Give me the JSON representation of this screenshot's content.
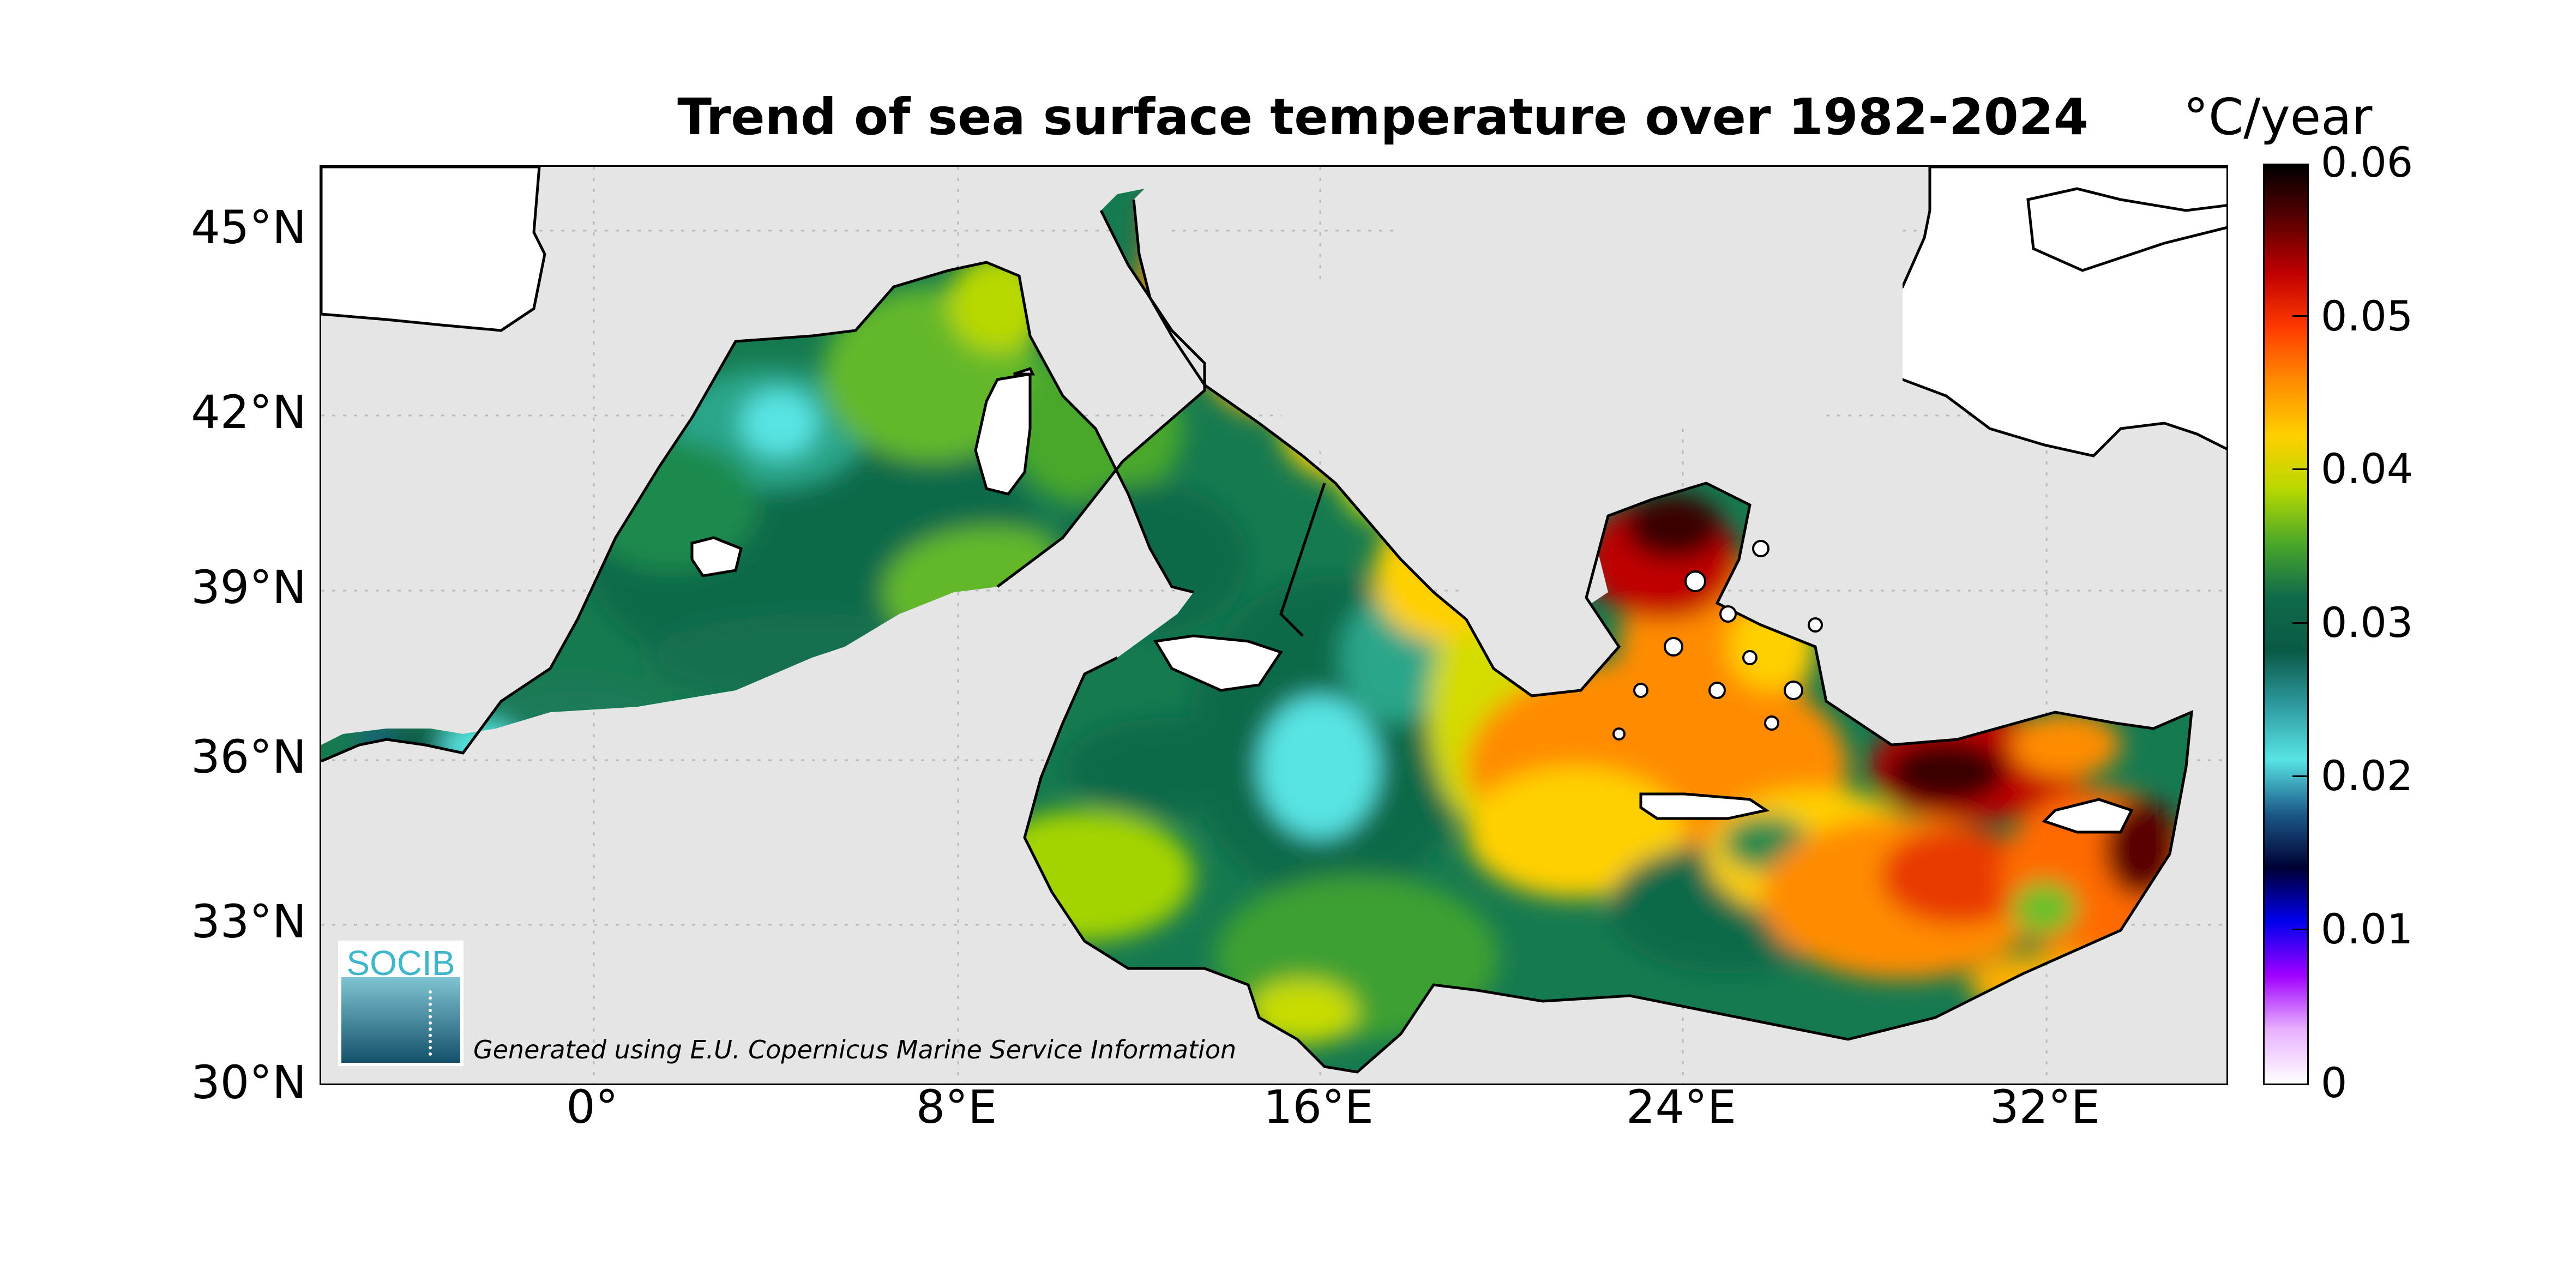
{
  "title": "Trend of sea surface temperature over 1982-2024",
  "colorbar": {
    "unit": "°C/year",
    "ticks": [
      "0.06",
      "0.05",
      "0.04",
      "0.03",
      "0.02",
      "0.01",
      "0"
    ],
    "stops": [
      "#000000",
      "#5a0000",
      "#c00000",
      "#ff3a00",
      "#ff8c00",
      "#ffd000",
      "#b8d800",
      "#4aa82a",
      "#0f6a4a",
      "#0a5a46",
      "#2e9aa0",
      "#58e4e4",
      "#1c5a8a",
      "#000033",
      "#0000ee",
      "#a000ff",
      "#e8b0ff",
      "#ffffff"
    ]
  },
  "axes": {
    "y_labels": [
      "45°N",
      "42°N",
      "39°N",
      "36°N",
      "33°N",
      "30°N"
    ],
    "x_labels": [
      "0°",
      "8°E",
      "16°E",
      "24°E",
      "32°E"
    ]
  },
  "logo": {
    "text": "SOCIB"
  },
  "credit": "Generated using E.U. Copernicus Marine Service Information",
  "colors": {
    "ocean_background": "#e5e5e5",
    "land": "#ffffff",
    "grid": "#bbbbbb"
  }
}
